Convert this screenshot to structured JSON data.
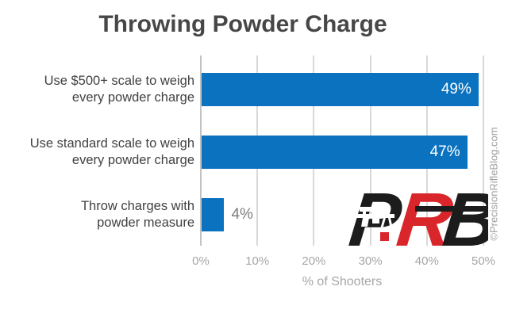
{
  "title": "Throwing Powder Charge",
  "watermark": "©PrecisionRifleBlog.com",
  "logo": {
    "letters": [
      {
        "text": "P",
        "color": "#1c1c1c"
      },
      {
        "text": "R",
        "color": "#d9262a"
      },
      {
        "text": "B",
        "color": "#1c1c1c"
      }
    ],
    "accent_red": "#d9262a",
    "accent_black": "#1c1c1c"
  },
  "chart_data": {
    "type": "bar",
    "orientation": "horizontal",
    "title": "Throwing Powder Charge",
    "categories": [
      "Use $500+ scale to weigh every powder charge",
      "Use standard scale to weigh every powder charge",
      "Throw charges with powder measure"
    ],
    "categories_wrapped": [
      [
        "Use $500+ scale to weigh",
        "every powder charge"
      ],
      [
        "Use standard scale to weigh",
        "every powder charge"
      ],
      [
        "Throw charges with",
        "powder measure"
      ]
    ],
    "values": [
      49,
      47,
      4
    ],
    "value_labels": [
      "49%",
      "47%",
      "4%"
    ],
    "xlabel": "% of Shooters",
    "xlim": [
      0,
      50
    ],
    "xticks": [
      "0%",
      "10%",
      "20%",
      "30%",
      "40%",
      "50%"
    ],
    "bar_color": "#0b72c0",
    "grid": true,
    "legend": false
  }
}
